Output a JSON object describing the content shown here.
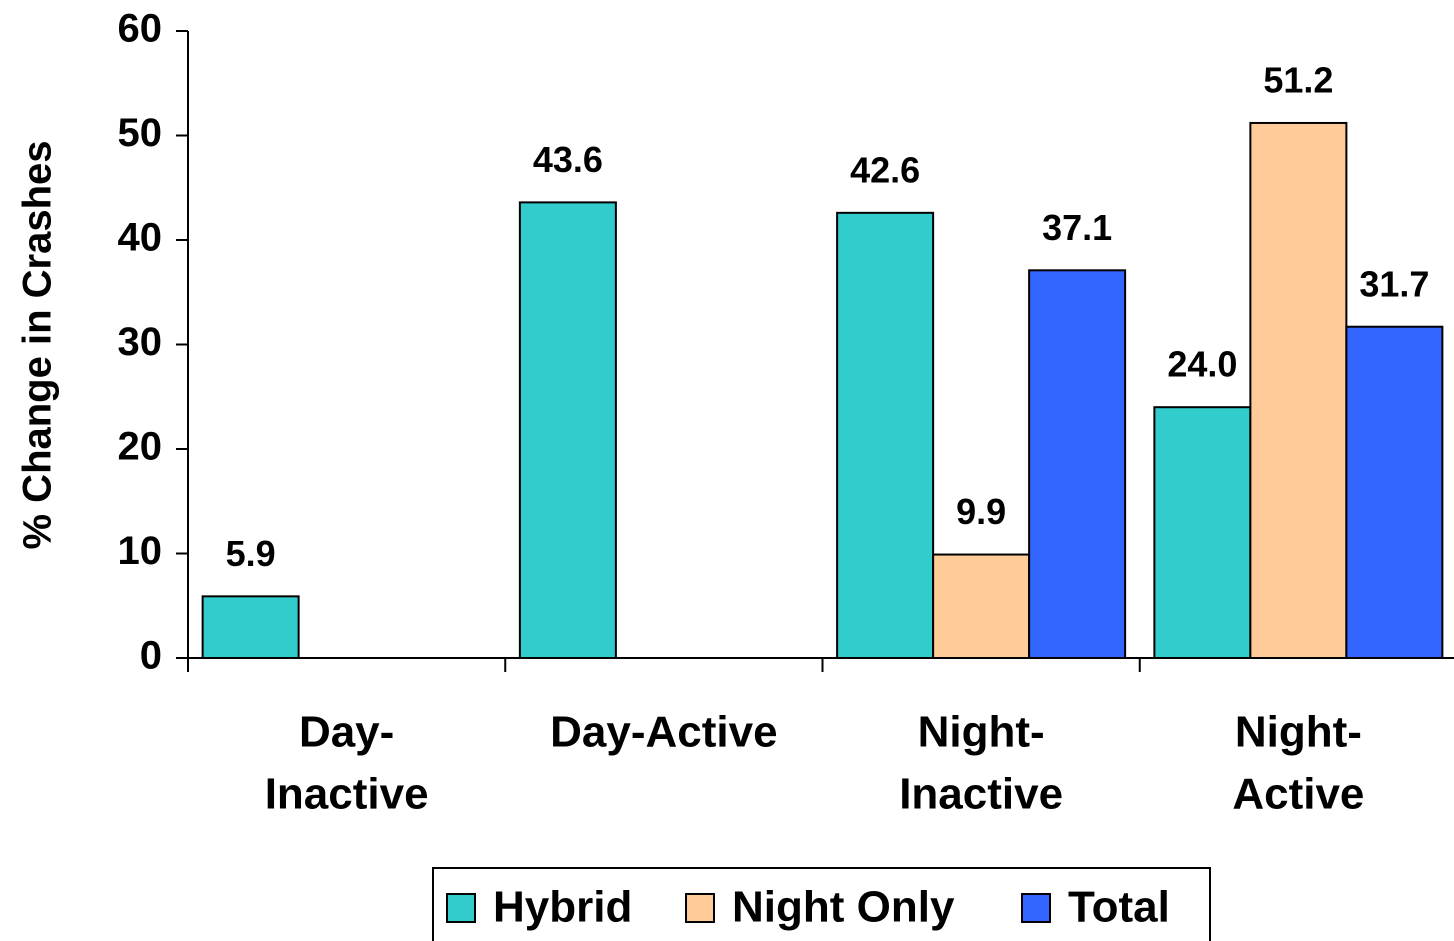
{
  "chart_data": {
    "type": "bar",
    "y_label": "% Change in Crashes",
    "categories": [
      [
        "Day-",
        "Inactive"
      ],
      [
        "Day-Active"
      ],
      [
        "Night-",
        "Inactive"
      ],
      [
        "Night-",
        "Active"
      ]
    ],
    "series": [
      {
        "name": "Hybrid",
        "color": "#33CCCC",
        "values": [
          5.9,
          43.6,
          42.6,
          24.0
        ],
        "value_labels": [
          "5.9",
          "43.6",
          "42.6",
          "24.0"
        ]
      },
      {
        "name": "Night Only",
        "color": "#FFCC99",
        "values": [
          null,
          null,
          9.9,
          51.2
        ],
        "value_labels": [
          null,
          null,
          "9.9",
          "51.2"
        ]
      },
      {
        "name": "Total",
        "color": "#3366FF",
        "values": [
          null,
          null,
          37.1,
          31.7
        ],
        "value_labels": [
          null,
          null,
          "37.1",
          "31.7"
        ]
      }
    ],
    "ylim": [
      0,
      60
    ],
    "yticks": [
      0,
      10,
      20,
      30,
      40,
      50,
      60
    ],
    "grid": false,
    "legend": "bottom"
  }
}
